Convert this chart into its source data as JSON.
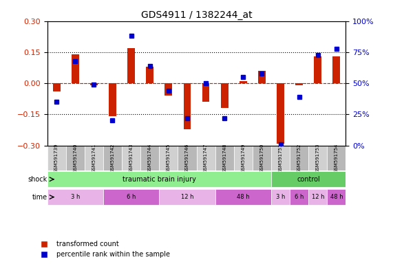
{
  "title": "GDS4911 / 1382244_at",
  "samples": [
    "GSM591739",
    "GSM591740",
    "GSM591741",
    "GSM591742",
    "GSM591743",
    "GSM591744",
    "GSM591745",
    "GSM591746",
    "GSM591747",
    "GSM591748",
    "GSM591749",
    "GSM591750",
    "GSM591751",
    "GSM591752",
    "GSM591753",
    "GSM591754"
  ],
  "red_values": [
    -0.04,
    0.14,
    -0.01,
    -0.16,
    0.17,
    0.08,
    -0.06,
    -0.22,
    -0.09,
    -0.12,
    0.01,
    0.06,
    -0.29,
    -0.01,
    0.13,
    0.13
  ],
  "blue_values": [
    35,
    68,
    49,
    20,
    88,
    64,
    44,
    22,
    50,
    22,
    55,
    58,
    1,
    39,
    73,
    78
  ],
  "ylim_red": [
    -0.3,
    0.3
  ],
  "ylim_blue": [
    0,
    100
  ],
  "hlines_red": [
    0.15,
    0,
    -0.15
  ],
  "shock_groups": [
    {
      "label": "traumatic brain injury",
      "start": 0,
      "end": 12,
      "color": "#90ee90"
    },
    {
      "label": "control",
      "start": 12,
      "end": 16,
      "color": "#66cc66"
    }
  ],
  "time_groups": [
    {
      "label": "3 h",
      "start": 0,
      "end": 3,
      "color": "#e8b4e8"
    },
    {
      "label": "6 h",
      "start": 3,
      "end": 6,
      "color": "#cc66cc"
    },
    {
      "label": "12 h",
      "start": 6,
      "end": 9,
      "color": "#e8b4e8"
    },
    {
      "label": "48 h",
      "start": 9,
      "end": 12,
      "color": "#cc66cc"
    },
    {
      "label": "3 h",
      "start": 12,
      "end": 13,
      "color": "#e8b4e8"
    },
    {
      "label": "6 h",
      "start": 13,
      "end": 14,
      "color": "#cc66cc"
    },
    {
      "label": "12 h",
      "start": 14,
      "end": 15,
      "color": "#e8b4e8"
    },
    {
      "label": "48 h",
      "start": 15,
      "end": 16,
      "color": "#cc66cc"
    }
  ],
  "red_color": "#cc2200",
  "blue_color": "#0000cc",
  "legend_red": "transformed count",
  "legend_blue": "percentile rank within the sample",
  "bg_color": "#f0f0f0",
  "shock_label": "shock",
  "time_label": "time"
}
